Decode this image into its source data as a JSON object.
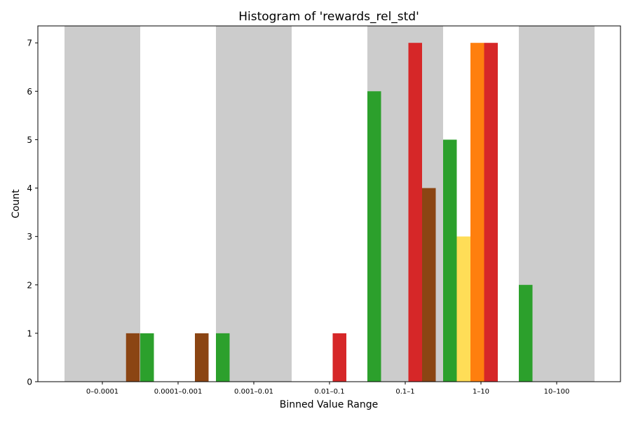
{
  "chart_data": {
    "type": "bar",
    "title": "Histogram of 'rewards_rel_std'",
    "xlabel": "Binned Value Range",
    "ylabel": "Count",
    "ylim": [
      0,
      7.35
    ],
    "yticks": [
      0,
      1,
      2,
      3,
      4,
      5,
      6,
      7
    ],
    "grid": false,
    "legend": "none",
    "categories": [
      "0–0.0001",
      "0.0001–0.001",
      "0.001–0.01",
      "0.01–0.1",
      "0.1–1",
      "1–10",
      "10–100"
    ],
    "shaded_bins": [
      0,
      2,
      4,
      6
    ],
    "shade_color": "#cccccc",
    "bars": [
      {
        "bin": 0,
        "slot": 4.5,
        "value": 1,
        "color": "#8b4513"
      },
      {
        "bin": 1,
        "slot": 0,
        "value": 1,
        "color": "#2ca02c"
      },
      {
        "bin": 1,
        "slot": 4,
        "value": 1,
        "color": "#8b4513"
      },
      {
        "bin": 2,
        "slot": 0,
        "value": 1,
        "color": "#2ca02c"
      },
      {
        "bin": 3,
        "slot": 3,
        "value": 1,
        "color": "#d62728"
      },
      {
        "bin": 4,
        "slot": 0,
        "value": 6,
        "color": "#2ca02c"
      },
      {
        "bin": 4,
        "slot": 3,
        "value": 7,
        "color": "#d62728"
      },
      {
        "bin": 4,
        "slot": 4,
        "value": 4,
        "color": "#8b4513"
      },
      {
        "bin": 5,
        "slot": 0,
        "value": 5,
        "color": "#2ca02c"
      },
      {
        "bin": 5,
        "slot": 1,
        "value": 3,
        "color": "#ffdd57"
      },
      {
        "bin": 5,
        "slot": 2,
        "value": 7,
        "color": "#ff7f0e"
      },
      {
        "bin": 5,
        "slot": 3,
        "value": 7,
        "color": "#d62728"
      },
      {
        "bin": 6,
        "slot": 0,
        "value": 2,
        "color": "#2ca02c"
      }
    ]
  }
}
